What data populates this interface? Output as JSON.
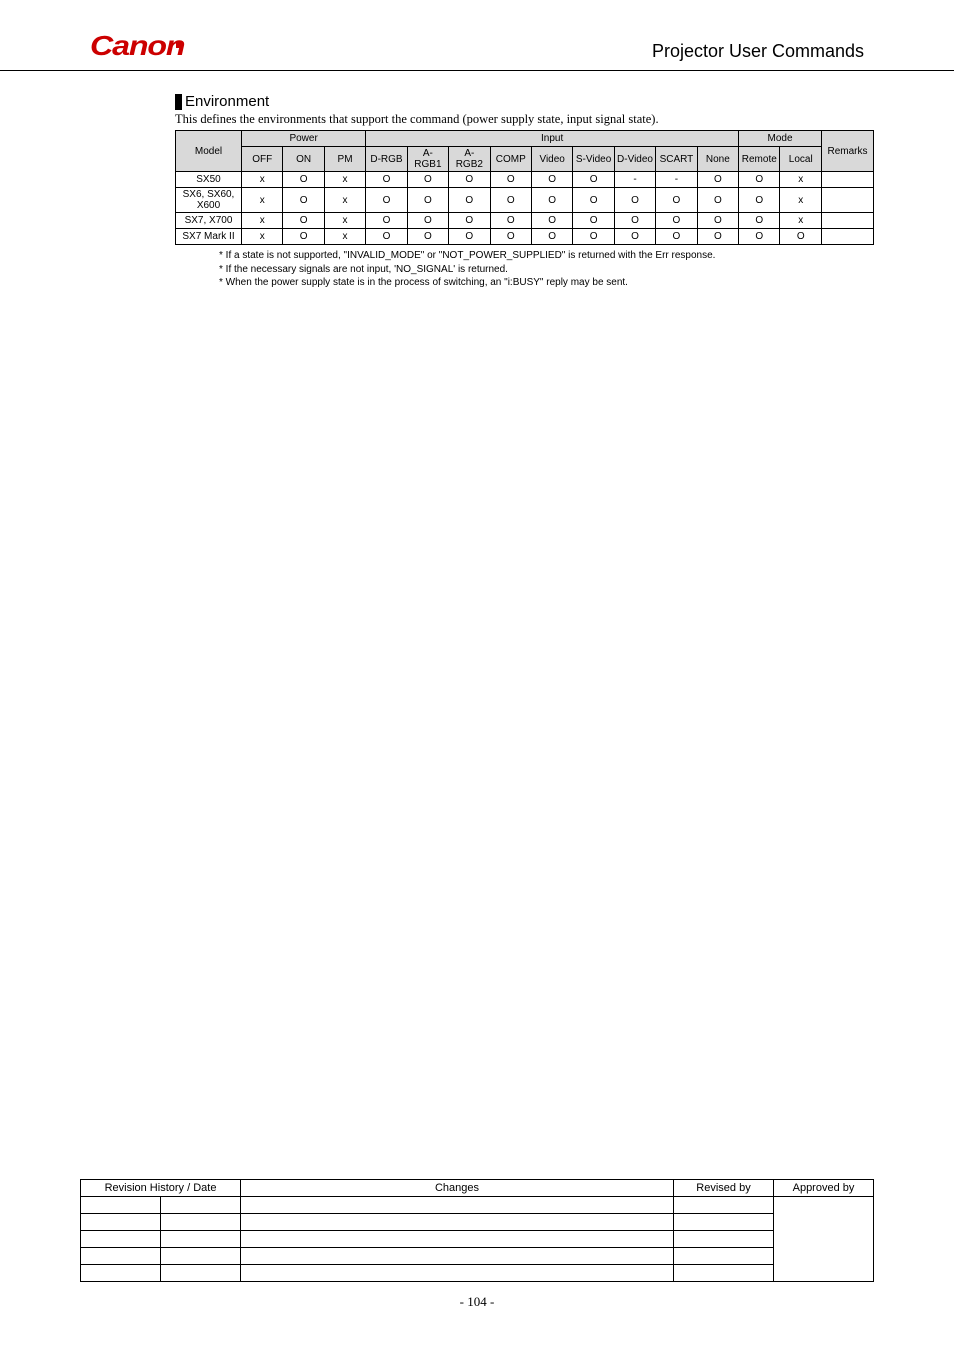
{
  "header": {
    "logo_text": "Canon",
    "title": "Projector User Commands",
    "logo_color": "#cc0000"
  },
  "section": {
    "title": "Environment",
    "description": "This defines the environments that support the command (power supply state, input signal state)."
  },
  "env_table": {
    "group_headers": {
      "model": "Model",
      "power": "Power",
      "input": "Input",
      "mode": "Mode",
      "remarks": "Remarks"
    },
    "sub_headers": {
      "off": "OFF",
      "on": "ON",
      "pm": "PM",
      "drgb": "D-RGB",
      "argb1": "A-RGB1",
      "argb2": "A-RGB2",
      "comp": "COMP",
      "video": "Video",
      "svideo": "S-Video",
      "dvideo": "D-Video",
      "scart": "SCART",
      "none": "None",
      "remote": "Remote",
      "local": "Local"
    },
    "rows": [
      {
        "model": "SX50",
        "c": [
          "x",
          "O",
          "x",
          "O",
          "O",
          "O",
          "O",
          "O",
          "O",
          "-",
          "-",
          "O",
          "O",
          "x"
        ],
        "remarks": ""
      },
      {
        "model": "SX6, SX60, X600",
        "c": [
          "x",
          "O",
          "x",
          "O",
          "O",
          "O",
          "O",
          "O",
          "O",
          "O",
          "O",
          "O",
          "O",
          "x"
        ],
        "remarks": ""
      },
      {
        "model": "SX7, X700",
        "c": [
          "x",
          "O",
          "x",
          "O",
          "O",
          "O",
          "O",
          "O",
          "O",
          "O",
          "O",
          "O",
          "O",
          "x"
        ],
        "remarks": ""
      },
      {
        "model": "SX7 Mark II",
        "c": [
          "x",
          "O",
          "x",
          "O",
          "O",
          "O",
          "O",
          "O",
          "O",
          "O",
          "O",
          "O",
          "O",
          "O"
        ],
        "remarks": ""
      }
    ]
  },
  "notes": [
    "If a state is not supported, \"INVALID_MODE\" or \"NOT_POWER_SUPPLIED\" is returned with the Err response.",
    "If the necessary signals are not input, 'NO_SIGNAL' is returned.",
    "When the power supply state is in the process of switching, an \"i:BUSY\" reply may be sent."
  ],
  "rev_table": {
    "headers": {
      "history": "Revision History / Date",
      "changes": "Changes",
      "revised": "Revised by",
      "approved": "Approved by"
    },
    "row_count": 5
  },
  "page_number": "- 104 -"
}
